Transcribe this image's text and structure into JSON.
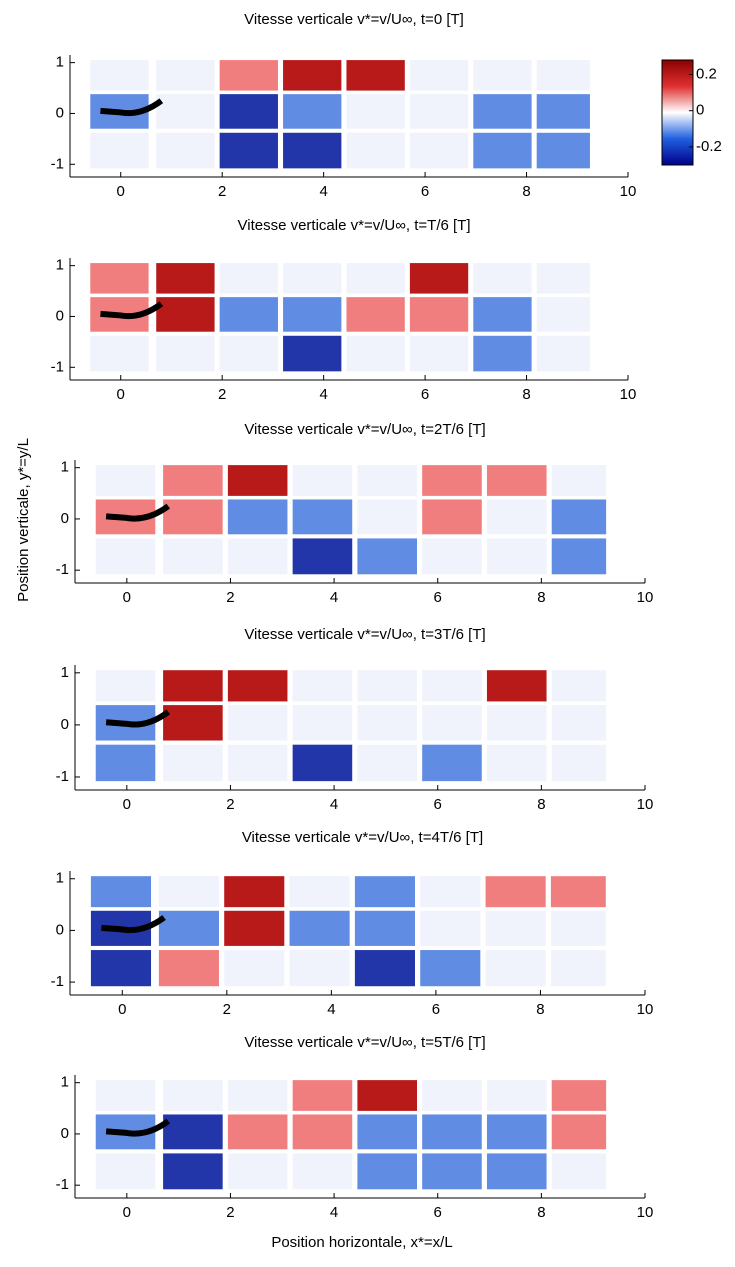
{
  "chart_data": [
    {
      "type": "heatmap",
      "title": "Vitesse verticale v*=v/U∞, t=0 [T]",
      "xlim": [
        -1,
        10
      ],
      "ylim": [
        -1.25,
        1.15
      ],
      "xticks": [
        0,
        2,
        4,
        6,
        8,
        10
      ],
      "yticks": [
        -1,
        0,
        1
      ],
      "colorbar": {
        "lim": [
          -0.3,
          0.28
        ],
        "ticks": [
          -0.2,
          0,
          0.2
        ],
        "colors": [
          "#00008b",
          "#2060e0",
          "#ffffff",
          "#e03030",
          "#8b0000"
        ]
      }
    },
    {
      "type": "heatmap",
      "title": "Vitesse verticale v*=v/U∞, t=T/6 [T]",
      "xlim": [
        -1,
        10
      ],
      "ylim": [
        -1.25,
        1.15
      ],
      "xticks": [
        0,
        2,
        4,
        6,
        8,
        10
      ],
      "yticks": [
        -1,
        0,
        1
      ]
    },
    {
      "type": "heatmap",
      "title": "Vitesse verticale v*=v/U∞, t=2T/6 [T]",
      "xlim": [
        -1,
        10
      ],
      "ylim": [
        -1.25,
        1.15
      ],
      "xticks": [
        0,
        2,
        4,
        6,
        8,
        10
      ],
      "yticks": [
        -1,
        0,
        1
      ],
      "ylabel": "Position verticale, y*=y/L"
    },
    {
      "type": "heatmap",
      "title": "Vitesse verticale v*=v/U∞, t=3T/6 [T]",
      "xlim": [
        -1,
        10
      ],
      "ylim": [
        -1.25,
        1.15
      ],
      "xticks": [
        0,
        2,
        4,
        6,
        8,
        10
      ],
      "yticks": [
        -1,
        0,
        1
      ]
    },
    {
      "type": "heatmap",
      "title": "Vitesse verticale v*=v/U∞, t=4T/6 [T]",
      "xlim": [
        -1,
        10
      ],
      "ylim": [
        -1.25,
        1.15
      ],
      "xticks": [
        0,
        2,
        4,
        6,
        8,
        10
      ],
      "yticks": [
        -1,
        0,
        1
      ]
    },
    {
      "type": "heatmap",
      "title": "Vitesse verticale v*=v/U∞, t=5T/6 [T]",
      "xlim": [
        -1,
        10
      ],
      "ylim": [
        -1.25,
        1.15
      ],
      "xticks": [
        0,
        2,
        4,
        6,
        8,
        10
      ],
      "yticks": [
        -1,
        0,
        1
      ],
      "xlabel": "Position horizontale, x*=x/L"
    }
  ]
}
